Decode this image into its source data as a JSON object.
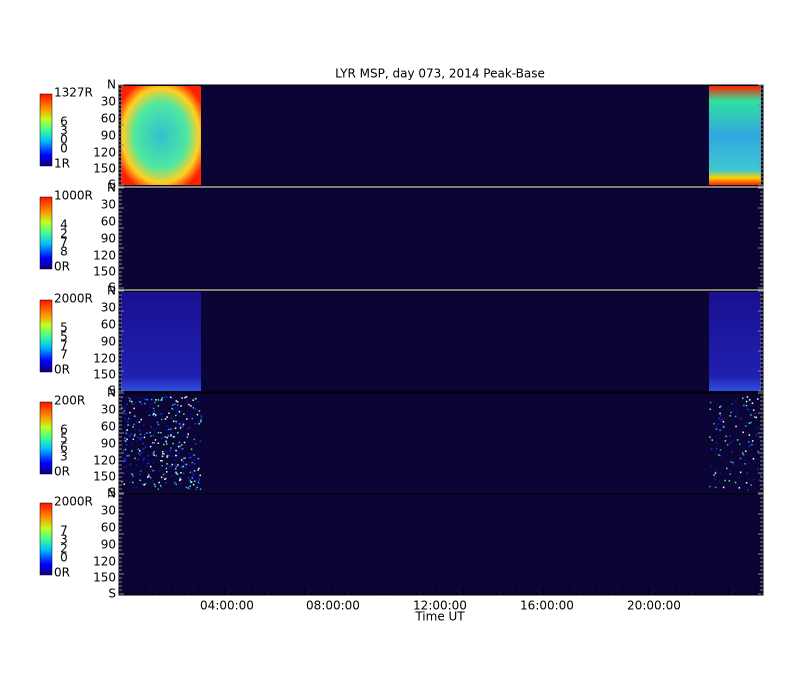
{
  "title": "LYR MSP, day 073, 2014 Peak-Base",
  "x_axis": {
    "label": "Time UT",
    "ticks": [
      "04:00:00",
      "08:00:00",
      "12:00:00",
      "16:00:00",
      "20:00:00"
    ]
  },
  "panels": [
    {
      "scale_max": "1327R",
      "scale_min": "1R",
      "wavelength": [
        "6",
        "3",
        "0",
        "0"
      ],
      "y_ticks": [
        "N",
        "30",
        "60",
        "90",
        "120",
        "150",
        "S"
      ]
    },
    {
      "scale_max": "1000R",
      "scale_min": "0R",
      "wavelength": [
        "4",
        "2",
        "7",
        "8"
      ],
      "y_ticks": [
        "N",
        "30",
        "60",
        "90",
        "120",
        "150",
        "S"
      ]
    },
    {
      "scale_max": "2000R",
      "scale_min": "0R",
      "wavelength": [
        "5",
        "5",
        "7",
        "7"
      ],
      "y_ticks": [
        "N",
        "30",
        "60",
        "90",
        "120",
        "150",
        "S"
      ]
    },
    {
      "scale_max": "200R",
      "scale_min": "0R",
      "wavelength": [
        "6",
        "5",
        "6",
        "3"
      ],
      "y_ticks": [
        "N",
        "30",
        "60",
        "90",
        "120",
        "150",
        "S"
      ]
    },
    {
      "scale_max": "2000R",
      "scale_min": "0R",
      "wavelength": [
        "7",
        "3",
        "2",
        "0"
      ],
      "y_ticks": [
        "N",
        "30",
        "60",
        "90",
        "120",
        "150",
        "S"
      ]
    }
  ]
}
